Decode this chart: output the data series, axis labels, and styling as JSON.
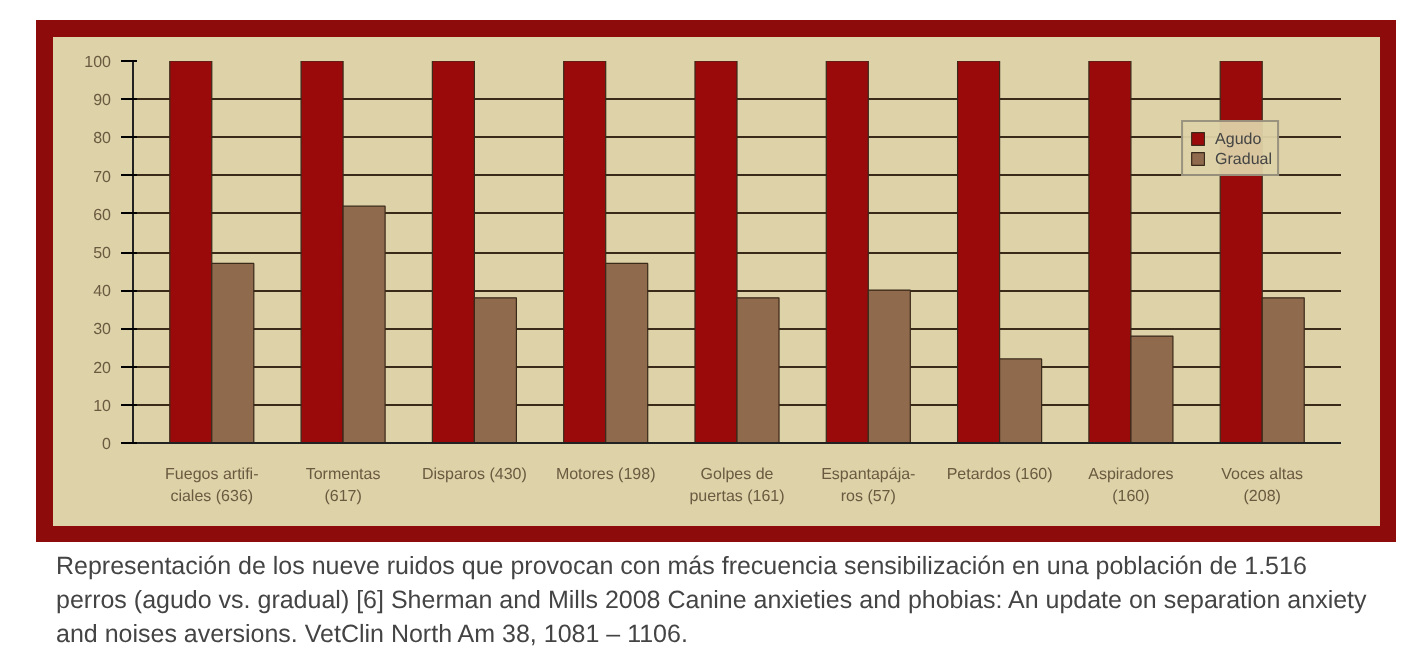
{
  "chart_data": {
    "type": "bar",
    "categories": [
      "Fuegos artifi-\nciales (636)",
      "Tormentas\n(617)",
      "Disparos (430)",
      "Motores (198)",
      "Golpes de\npuertas (161)",
      "Espantapája-\nros (57)",
      "Petardos (160)",
      "Aspiradores\n(160)",
      "Voces altas\n(208)"
    ],
    "series": [
      {
        "name": "Agudo",
        "color": "#9b0a0a",
        "values": [
          100,
          100,
          100,
          100,
          100,
          100,
          100,
          100,
          100
        ]
      },
      {
        "name": "Gradual",
        "color": "#8f6a4c",
        "values": [
          47,
          62,
          38,
          47,
          38,
          40,
          22,
          28,
          38
        ]
      }
    ],
    "ylim": [
      0,
      100
    ],
    "yticks": [
      0,
      10,
      20,
      30,
      40,
      50,
      60,
      70,
      80,
      90,
      100
    ],
    "grid": "y",
    "legend": "top right",
    "annotations": [
      "Representación de los nueve ruidos que provocan con más frecuencia sensibilización en una población de 1.516 perros (agudo vs. gradual) [6] Sherman and Mills 2008 Canine anxieties and phobias: An update on separation anxiety and noises aversions. VetClin North Am 38, 1081 – 1106."
    ]
  }
}
